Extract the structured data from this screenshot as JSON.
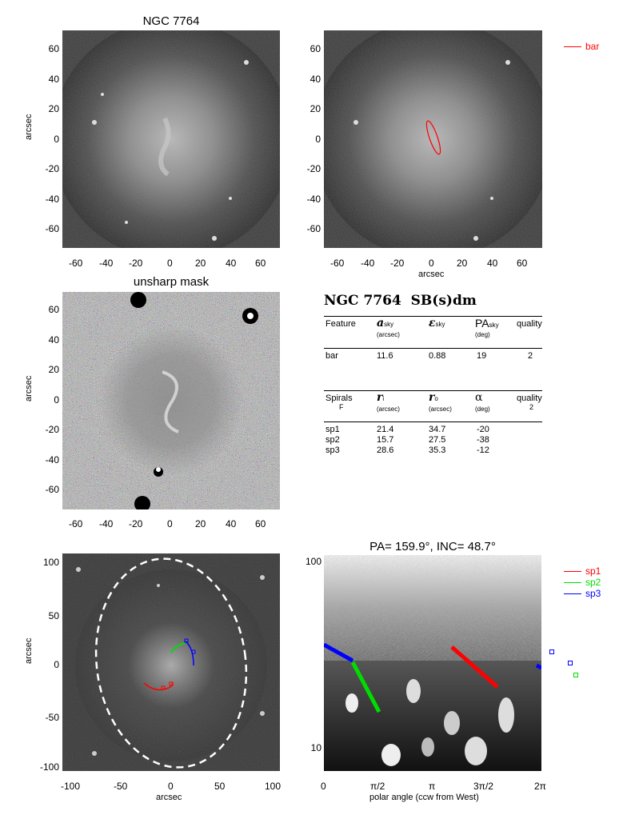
{
  "panels": {
    "top_left": {
      "title": "NGC 7764",
      "y_label": "arcsec",
      "y_ticks": [
        "60",
        "40",
        "20",
        "0",
        "-20",
        "-40",
        "-60"
      ],
      "x_ticks": [
        "-60",
        "-40",
        "-20",
        "0",
        "20",
        "40",
        "60"
      ]
    },
    "top_right": {
      "x_label": "arcsec",
      "y_ticks": [
        "60",
        "40",
        "20",
        "0",
        "-20",
        "-40",
        "-60"
      ],
      "x_ticks": [
        "-60",
        "-40",
        "-20",
        "0",
        "20",
        "40",
        "60"
      ],
      "legend": [
        {
          "label": "bar",
          "color": "#ff0000"
        }
      ]
    },
    "mid_left": {
      "title": "unsharp mask",
      "y_label": "arcsec",
      "y_ticks": [
        "60",
        "40",
        "20",
        "0",
        "-20",
        "-40",
        "-60"
      ],
      "x_ticks": [
        "-60",
        "-40",
        "-20",
        "0",
        "20",
        "40",
        "60"
      ]
    },
    "bottom_left": {
      "x_label": "arcsec",
      "y_label": "arcsec",
      "y_ticks": [
        "100",
        "50",
        "0",
        "-50",
        "-100"
      ],
      "x_ticks": [
        "-100",
        "-50",
        "0",
        "50",
        "100"
      ]
    },
    "bottom_right": {
      "title": "PA= 159.9°, INC= 48.7°",
      "x_label": "polar angle (ccw from West)",
      "y_ticks": [
        "100",
        "10"
      ],
      "x_ticks": [
        "0",
        "π/2",
        "π",
        "3π/2",
        "2π"
      ],
      "legend": [
        {
          "label": "sp1",
          "color": "#ff0000"
        },
        {
          "label": "sp2",
          "color": "#00dd00"
        },
        {
          "label": "sp3",
          "color": "#0000ff"
        }
      ]
    }
  },
  "table": {
    "title": "NGC 7764  SB(s)dm",
    "bar_header": {
      "c1": "Feature",
      "c2": "a",
      "c2sub": "sky",
      "c2unit": "(arcsec)",
      "c3": "ε",
      "c3sub": "sky",
      "c4": "PA",
      "c4sub": "sky",
      "c4unit": "(deg)",
      "c5": "quality"
    },
    "bar_row": {
      "c1": "bar",
      "c2": "11.6",
      "c3": "0.88",
      "c4": "19",
      "c5": "2"
    },
    "spiral_header": {
      "c1": "Spirals",
      "c1b": "F",
      "c2": "r",
      "c2sub": "i",
      "c2unit": "(arcsec)",
      "c3": "r",
      "c3sub": "o",
      "c3unit": "(arcsec)",
      "c4": "α",
      "c4unit": "(deg)",
      "c5": "quality",
      "c5b": "2"
    },
    "spiral_rows": [
      {
        "c1": "sp1",
        "c2": "21.4",
        "c3": "34.7",
        "c4": "-20"
      },
      {
        "c1": "sp2",
        "c2": "15.7",
        "c3": "27.5",
        "c4": "-38"
      },
      {
        "c1": "sp3",
        "c2": "28.6",
        "c3": "35.3",
        "c4": "-12"
      }
    ]
  }
}
